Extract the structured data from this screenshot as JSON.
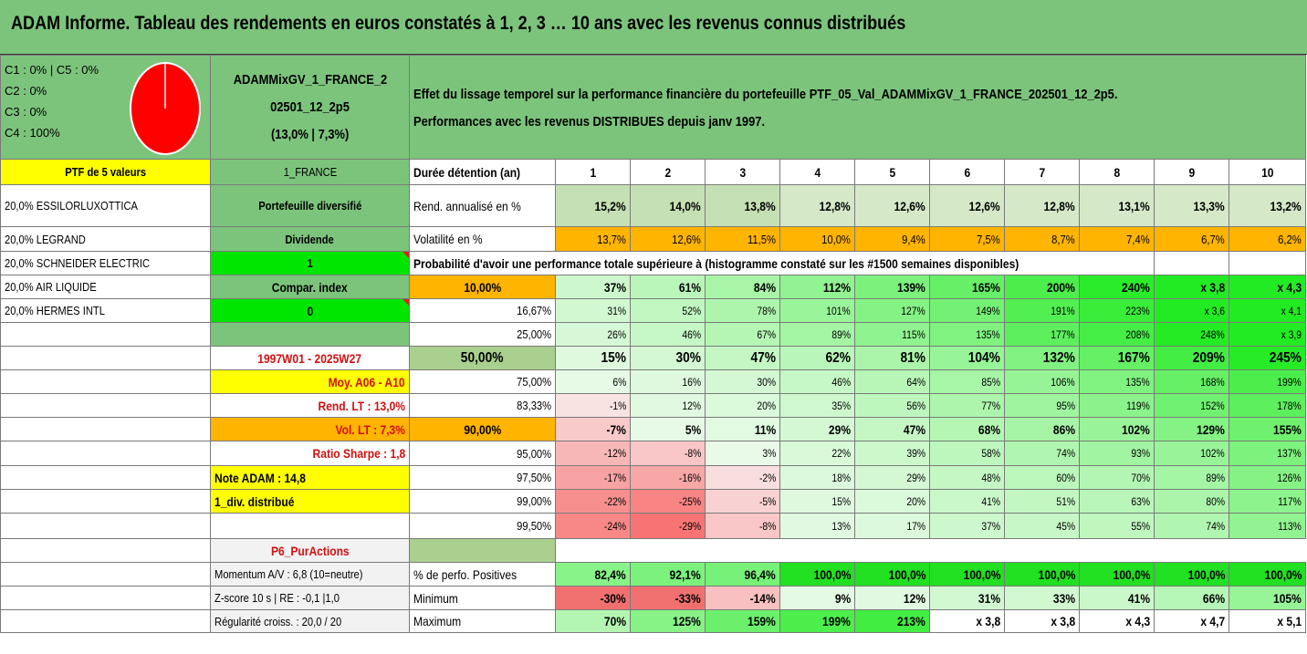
{
  "title": "ADAM Informe. Tableau des rendements en euros constatés à 1, 2, 3 … 10 ans avec les revenus connus distribués",
  "classes": [
    "C1 : 0% | C5 : 0%",
    "C2 : 0%",
    "C3 : 0%",
    "C4 : 100%"
  ],
  "pie_color": "#ff0000",
  "portfolio": {
    "name_line1": "ADAMMixGV_1_FRANCE_2",
    "name_line2": "02501_12_2p5",
    "stats": "(13,0% | 7,3%)"
  },
  "description": {
    "line1": "Effet du lissage temporel sur la performance financière du portefeuille PTF_05_Val_ADAMMixGV_1_FRANCE_202501_12_2p5.",
    "line2": "Performances avec les revenus DISTRIBUES depuis janv 1997."
  },
  "ptf_label": "PTF de 5 valeurs",
  "zone_label": "1_FRANCE",
  "holdings": [
    "20,0% ESSILORLUXOTTICA",
    "20,0% LEGRAND",
    "20,0% SCHNEIDER ELECTRIC",
    "20,0% AIR LIQUIDE",
    "20,0% HERMES INTL"
  ],
  "side": {
    "diversified": "Portefeuille diversifié",
    "dividende": "Dividende",
    "dividende_value": "1",
    "compar_index": "Compar. index",
    "compar_index_value": "0",
    "period": "1997W01 - 2025W27",
    "moy": "Moy. A06 - A10",
    "rend_lt": "Rend. LT : 13,0%",
    "vol_lt": "Vol. LT : 7,3%",
    "sharpe": "Ratio Sharpe : 1,8",
    "note": "Note ADAM : 14,8",
    "div_distrib": "1_div. distribué",
    "p6": "P6_PurActions",
    "momentum": "Momentum A/V : 6,8 (10=neutre)",
    "zscore": "Z-score 10 s | RE : -0,1 |1,0",
    "regularite": "Régularité croiss. : 20,0 / 20"
  },
  "table": {
    "duration_label": "Durée détention (an)",
    "years": [
      "1",
      "2",
      "3",
      "4",
      "5",
      "6",
      "7",
      "8",
      "9",
      "10"
    ],
    "rend_label": "Rend. annualisé en %",
    "rend": [
      "15,2%",
      "14,0%",
      "13,8%",
      "12,8%",
      "12,6%",
      "12,6%",
      "12,8%",
      "13,1%",
      "13,3%",
      "13,2%"
    ],
    "vol_label": "Volatilité en %",
    "vol": [
      "13,7%",
      "12,6%",
      "11,5%",
      "10,0%",
      "9,4%",
      "7,5%",
      "8,7%",
      "7,4%",
      "6,7%",
      "6,2%"
    ],
    "prob_title": "Probabilité d'avoir une performance totale supérieure à (histogramme constaté sur les #1500 semaines disponibles)",
    "quantiles": [
      {
        "p": "10,00%",
        "v": [
          "37%",
          "61%",
          "84%",
          "112%",
          "139%",
          "165%",
          "200%",
          "240%",
          "x 3,8",
          "x 4,3"
        ]
      },
      {
        "p": "16,67%",
        "v": [
          "31%",
          "52%",
          "78%",
          "101%",
          "127%",
          "149%",
          "191%",
          "223%",
          "x 3,6",
          "x 4,1"
        ]
      },
      {
        "p": "25,00%",
        "v": [
          "26%",
          "46%",
          "67%",
          "89%",
          "115%",
          "135%",
          "177%",
          "208%",
          "248%",
          "x 3,9"
        ]
      },
      {
        "p": "50,00%",
        "v": [
          "15%",
          "30%",
          "47%",
          "62%",
          "81%",
          "104%",
          "132%",
          "167%",
          "209%",
          "245%"
        ]
      },
      {
        "p": "75,00%",
        "v": [
          "6%",
          "16%",
          "30%",
          "46%",
          "64%",
          "85%",
          "106%",
          "135%",
          "168%",
          "199%"
        ]
      },
      {
        "p": "83,33%",
        "v": [
          "-1%",
          "12%",
          "20%",
          "35%",
          "56%",
          "77%",
          "95%",
          "119%",
          "152%",
          "178%"
        ]
      },
      {
        "p": "90,00%",
        "v": [
          "-7%",
          "5%",
          "11%",
          "29%",
          "47%",
          "68%",
          "86%",
          "102%",
          "129%",
          "155%"
        ]
      },
      {
        "p": "95,00%",
        "v": [
          "-12%",
          "-8%",
          "3%",
          "22%",
          "39%",
          "58%",
          "74%",
          "93%",
          "102%",
          "137%"
        ]
      },
      {
        "p": "97,50%",
        "v": [
          "-17%",
          "-16%",
          "-2%",
          "18%",
          "29%",
          "48%",
          "60%",
          "70%",
          "89%",
          "126%"
        ]
      },
      {
        "p": "99,00%",
        "v": [
          "-22%",
          "-25%",
          "-5%",
          "15%",
          "20%",
          "41%",
          "51%",
          "63%",
          "80%",
          "117%"
        ]
      },
      {
        "p": "99,50%",
        "v": [
          "-24%",
          "-29%",
          "-8%",
          "13%",
          "17%",
          "37%",
          "45%",
          "55%",
          "74%",
          "113%"
        ]
      }
    ],
    "pos_label": "% de perfo. Positives",
    "pos": [
      "82,4%",
      "92,1%",
      "96,4%",
      "100,0%",
      "100,0%",
      "100,0%",
      "100,0%",
      "100,0%",
      "100,0%",
      "100,0%"
    ],
    "min_label": "Minimum",
    "min": [
      "-30%",
      "-33%",
      "-14%",
      "9%",
      "12%",
      "31%",
      "33%",
      "41%",
      "66%",
      "105%"
    ],
    "max_label": "Maximum",
    "max": [
      "70%",
      "125%",
      "159%",
      "199%",
      "213%",
      "x 3,8",
      "x 3,8",
      "x 4,3",
      "x 4,7",
      "x 5,1"
    ]
  }
}
